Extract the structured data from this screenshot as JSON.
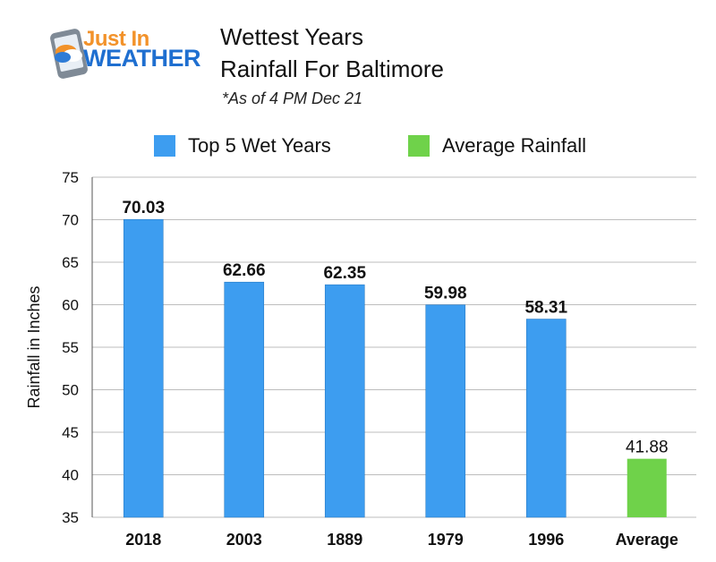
{
  "logo": {
    "line1": "Just In",
    "line2": "WEATHER"
  },
  "title_line1": "Wettest Years",
  "title_line2": "Rainfall For Baltimore",
  "subtitle": "*As of 4 PM Dec 21",
  "colors": {
    "top5": "#3d9df0",
    "average": "#6fd24a",
    "grid": "#bdbdbd"
  },
  "chart_data": {
    "type": "bar",
    "categories": [
      "2018",
      "2003",
      "1889",
      "1979",
      "1996",
      "Average"
    ],
    "series": [
      {
        "name": "Top 5 Wet Years",
        "values": [
          70.03,
          62.66,
          62.35,
          59.98,
          58.31,
          null
        ],
        "color": "#3d9df0"
      },
      {
        "name": "Average Rainfall",
        "values": [
          null,
          null,
          null,
          null,
          null,
          41.88
        ],
        "color": "#6fd24a"
      }
    ],
    "data_labels": [
      "70.03",
      "62.66",
      "62.35",
      "59.98",
      "58.31",
      "41.88"
    ],
    "ylabel": "Rainfall in Inches",
    "xlabel": "",
    "ylim": [
      35,
      75
    ],
    "yticks": [
      35,
      40,
      45,
      50,
      55,
      60,
      65,
      70,
      75
    ],
    "grid": true,
    "legend_position": "top"
  }
}
